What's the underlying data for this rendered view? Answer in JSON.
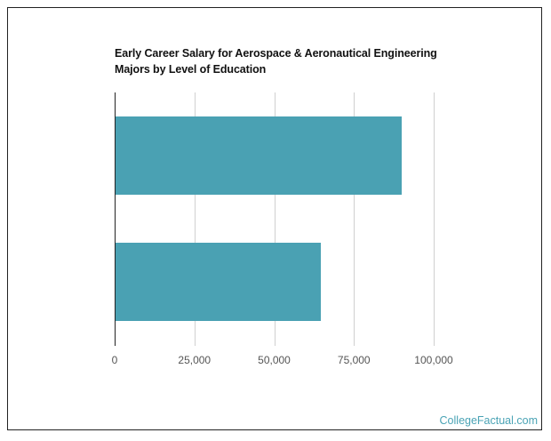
{
  "chart_data": {
    "type": "bar",
    "orientation": "horizontal",
    "title": "Early Career Salary for Aerospace & Aeronautical Engineering Majors by Level of Education",
    "categories": [
      "",
      ""
    ],
    "values": [
      90000,
      64600
    ],
    "xlabel": "",
    "ylabel": "",
    "xlim": [
      0,
      100000
    ],
    "x_ticks": [
      "0",
      "25,000",
      "50,000",
      "75,000",
      "100,000"
    ],
    "grid": true,
    "legend": null,
    "bar_color": "#4aa1b3"
  },
  "title_line1": "Early Career Salary for Aerospace & Aeronautical Engineering",
  "title_line2": "Majors by Level of Education",
  "brand": "CollegeFactual.com",
  "colors": {
    "bar": "#4aa1b3",
    "brand": "#4aa3b5",
    "grid": "#d0d0d0"
  }
}
